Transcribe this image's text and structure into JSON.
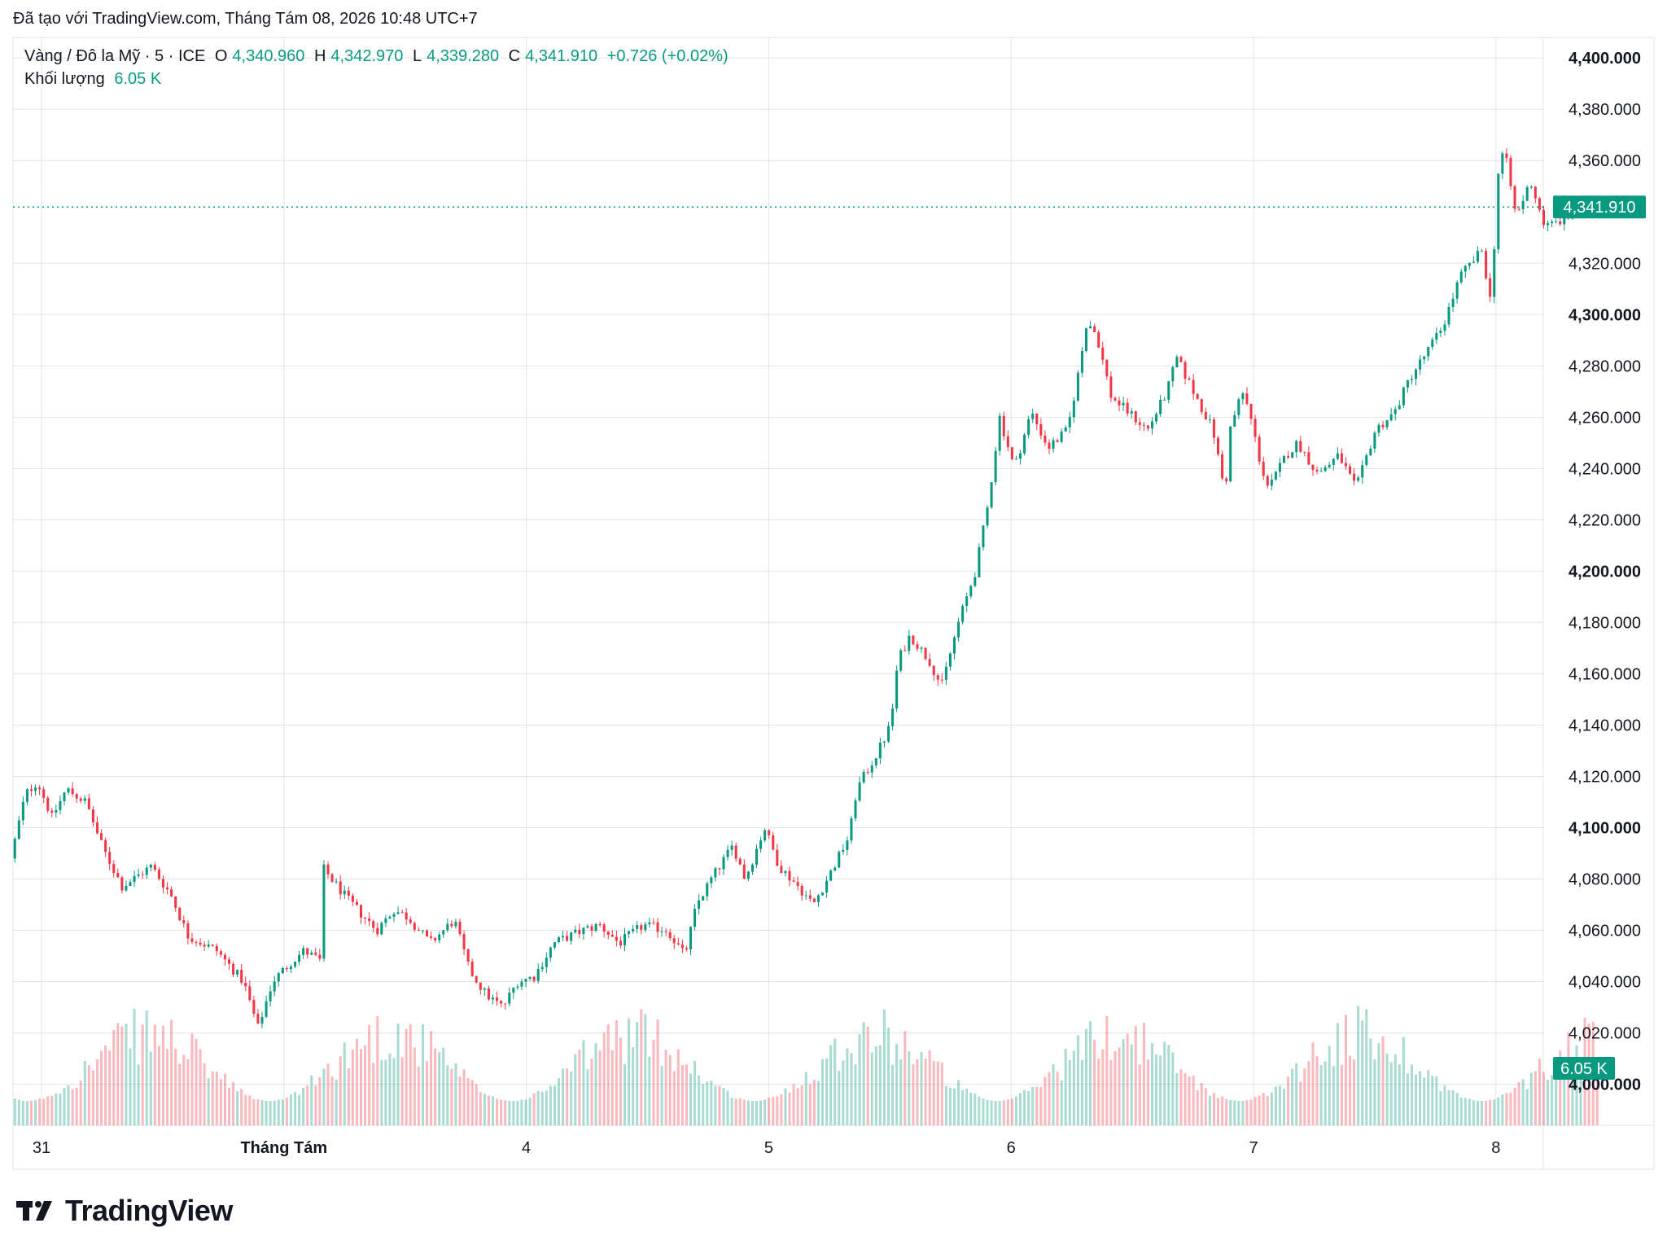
{
  "caption": "Đã tạo với TradingView.com, Tháng Tám 08, 2026 10:48 UTC+7",
  "legend": {
    "symbol": "Vàng / Đô la Mỹ · 5 · ICE",
    "open_label": "O",
    "open": "4,340.960",
    "high_label": "H",
    "high": "4,342.970",
    "low_label": "L",
    "low": "4,339.280",
    "close_label": "C",
    "close": "4,341.910",
    "change": "+0.726 (+0.02%)",
    "volume_label": "Khối lượng",
    "volume": "6.05 K"
  },
  "logo_text": "TradingView",
  "colors": {
    "up": "#089981",
    "down": "#f23645",
    "grid": "#e0e3eb",
    "text": "#131722"
  },
  "chart_data": {
    "type": "candlestick",
    "title": "",
    "xlabel": "",
    "ylabel": "",
    "y_axis": {
      "range": [
        3984,
        4408
      ],
      "ticks": [
        {
          "value": 4400,
          "label": "4,400.000",
          "bold": true
        },
        {
          "value": 4380,
          "label": "4,380.000",
          "bold": false
        },
        {
          "value": 4360,
          "label": "4,360.000",
          "bold": false
        },
        {
          "value": 4320,
          "label": "4,320.000",
          "bold": false
        },
        {
          "value": 4300,
          "label": "4,300.000",
          "bold": true
        },
        {
          "value": 4280,
          "label": "4,280.000",
          "bold": false
        },
        {
          "value": 4260,
          "label": "4,260.000",
          "bold": false
        },
        {
          "value": 4240,
          "label": "4,240.000",
          "bold": false
        },
        {
          "value": 4220,
          "label": "4,220.000",
          "bold": false
        },
        {
          "value": 4200,
          "label": "4,200.000",
          "bold": true
        },
        {
          "value": 4180,
          "label": "4,180.000",
          "bold": false
        },
        {
          "value": 4160,
          "label": "4,160.000",
          "bold": false
        },
        {
          "value": 4140,
          "label": "4,140.000",
          "bold": false
        },
        {
          "value": 4120,
          "label": "4,120.000",
          "bold": false
        },
        {
          "value": 4100,
          "label": "4,100.000",
          "bold": true
        },
        {
          "value": 4080,
          "label": "4,080.000",
          "bold": false
        },
        {
          "value": 4060,
          "label": "4,060.000",
          "bold": false
        },
        {
          "value": 4040,
          "label": "4,040.000",
          "bold": false
        },
        {
          "value": 4020,
          "label": "4,020.000",
          "bold": false
        },
        {
          "value": 4000,
          "label": "4,000.000",
          "bold": true
        }
      ]
    },
    "x_axis": {
      "ticks": [
        {
          "t": 0,
          "label": "31",
          "bold": false
        },
        {
          "t": 1,
          "label": "Tháng Tám",
          "bold": true
        },
        {
          "t": 2,
          "label": "4",
          "bold": false
        },
        {
          "t": 3,
          "label": "5",
          "bold": false
        },
        {
          "t": 4,
          "label": "6",
          "bold": false
        },
        {
          "t": 5,
          "label": "7",
          "bold": false
        },
        {
          "t": 6,
          "label": "8",
          "bold": false
        }
      ]
    },
    "grid": true,
    "last_price": 4341.91,
    "last_price_label": "4,341.910",
    "volume_last_label": "6.05 K",
    "price_path": [
      [
        -0.11,
        4088
      ],
      [
        -0.05,
        4113
      ],
      [
        0.0,
        4118
      ],
      [
        0.06,
        4104
      ],
      [
        0.12,
        4115
      ],
      [
        0.2,
        4110
      ],
      [
        0.27,
        4092
      ],
      [
        0.35,
        4077
      ],
      [
        0.47,
        4085
      ],
      [
        0.55,
        4074
      ],
      [
        0.62,
        4058
      ],
      [
        0.74,
        4052
      ],
      [
        0.85,
        4040
      ],
      [
        0.91,
        4022
      ],
      [
        0.97,
        4040
      ],
      [
        1.05,
        4048
      ],
      [
        1.1,
        4052
      ],
      [
        1.17,
        4048
      ],
      [
        1.18,
        4084
      ],
      [
        1.28,
        4072
      ],
      [
        1.4,
        4060
      ],
      [
        1.47,
        4068
      ],
      [
        1.53,
        4065
      ],
      [
        1.62,
        4055
      ],
      [
        1.72,
        4064
      ],
      [
        1.78,
        4045
      ],
      [
        1.85,
        4035
      ],
      [
        1.92,
        4030
      ],
      [
        1.98,
        4040
      ],
      [
        2.05,
        4042
      ],
      [
        2.13,
        4055
      ],
      [
        2.25,
        4060
      ],
      [
        2.32,
        4062
      ],
      [
        2.4,
        4055
      ],
      [
        2.5,
        4062
      ],
      [
        2.6,
        4060
      ],
      [
        2.67,
        4050
      ],
      [
        2.72,
        4070
      ],
      [
        2.78,
        4080
      ],
      [
        2.87,
        4093
      ],
      [
        2.92,
        4080
      ],
      [
        3.0,
        4100
      ],
      [
        3.06,
        4085
      ],
      [
        3.14,
        4077
      ],
      [
        3.2,
        4070
      ],
      [
        3.27,
        4082
      ],
      [
        3.35,
        4097
      ],
      [
        3.38,
        4115
      ],
      [
        3.47,
        4130
      ],
      [
        3.52,
        4140
      ],
      [
        3.55,
        4165
      ],
      [
        3.6,
        4175
      ],
      [
        3.68,
        4165
      ],
      [
        3.73,
        4155
      ],
      [
        3.8,
        4180
      ],
      [
        3.87,
        4200
      ],
      [
        3.92,
        4225
      ],
      [
        3.97,
        4260
      ],
      [
        4.03,
        4240
      ],
      [
        4.1,
        4262
      ],
      [
        4.17,
        4248
      ],
      [
        4.25,
        4255
      ],
      [
        4.3,
        4280
      ],
      [
        4.33,
        4298
      ],
      [
        4.37,
        4292
      ],
      [
        4.43,
        4268
      ],
      [
        4.5,
        4262
      ],
      [
        4.58,
        4255
      ],
      [
        4.66,
        4270
      ],
      [
        4.7,
        4283
      ],
      [
        4.78,
        4268
      ],
      [
        4.85,
        4255
      ],
      [
        4.9,
        4230
      ],
      [
        4.92,
        4255
      ],
      [
        4.97,
        4270
      ],
      [
        5.0,
        4262
      ],
      [
        5.05,
        4240
      ],
      [
        5.08,
        4232
      ],
      [
        5.15,
        4245
      ],
      [
        5.2,
        4250
      ],
      [
        5.28,
        4238
      ],
      [
        5.37,
        4245
      ],
      [
        5.44,
        4232
      ],
      [
        5.52,
        4255
      ],
      [
        5.6,
        4262
      ],
      [
        5.66,
        4275
      ],
      [
        5.75,
        4288
      ],
      [
        5.8,
        4296
      ],
      [
        5.87,
        4315
      ],
      [
        5.96,
        4325
      ],
      [
        6.0,
        4302
      ],
      [
        6.02,
        4352
      ],
      [
        6.05,
        4365
      ],
      [
        6.1,
        4338
      ],
      [
        6.16,
        4352
      ],
      [
        6.22,
        4334
      ],
      [
        6.32,
        4338
      ],
      [
        6.36,
        4344
      ],
      [
        6.42,
        4340
      ]
    ]
  }
}
